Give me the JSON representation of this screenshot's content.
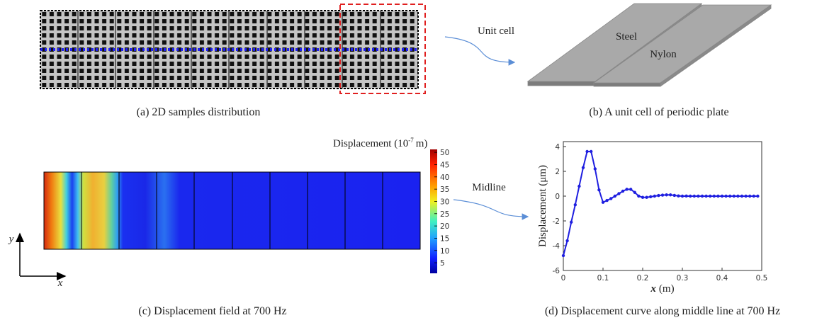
{
  "panel_a": {
    "caption": "(a) 2D samples distribution"
  },
  "panel_b": {
    "caption": "(b) A unit cell of periodic plate",
    "arrow_label": "Unit cell",
    "steel": "Steel",
    "nylon": "Nylon"
  },
  "panel_c": {
    "caption": "(c) Displacement field at 700 Hz",
    "arrow_label": "Midline",
    "y_axis": "y",
    "x_axis": "x",
    "colorbar": {
      "title": "Displacement (10",
      "title_sup": "-7",
      "title_end": "m)",
      "clim": [
        0.7,
        51.2
      ],
      "ticks": [
        5,
        10,
        15,
        20,
        25,
        30,
        35,
        40,
        45,
        50
      ]
    }
  },
  "chart_data": {
    "type": "line",
    "caption": "(d) Displacement curve along middle line at 700 Hz",
    "xlabel_var": "x",
    "xlabel_unit": "(m)",
    "ylabel": "Displacement (μm)",
    "x": [
      0,
      0.01,
      0.02,
      0.03,
      0.04,
      0.05,
      0.06,
      0.07,
      0.08,
      0.09,
      0.1,
      0.11,
      0.12,
      0.13,
      0.14,
      0.15,
      0.16,
      0.17,
      0.18,
      0.19,
      0.2,
      0.21,
      0.22,
      0.23,
      0.24,
      0.25,
      0.26,
      0.27,
      0.28,
      0.29,
      0.3,
      0.31,
      0.32,
      0.33,
      0.34,
      0.35,
      0.36,
      0.37,
      0.38,
      0.39,
      0.4,
      0.41,
      0.42,
      0.43,
      0.44,
      0.45,
      0.46,
      0.47,
      0.48,
      0.49
    ],
    "values": [
      -4.8,
      -3.6,
      -2.1,
      -0.7,
      0.8,
      2.3,
      3.6,
      3.6,
      2.2,
      0.5,
      -0.5,
      -0.35,
      -0.2,
      0,
      0.2,
      0.4,
      0.55,
      0.55,
      0.3,
      0,
      -0.1,
      -0.1,
      -0.05,
      0,
      0.05,
      0.08,
      0.1,
      0.1,
      0.06,
      0.02,
      0,
      0.01,
      0,
      0,
      0,
      0,
      0,
      0,
      0,
      0,
      0,
      0,
      0,
      0,
      0,
      0,
      0,
      0,
      0,
      0
    ],
    "color": "#1f1fe0",
    "xlim": [
      0,
      0.5
    ],
    "ylim": [
      -6,
      4.4
    ],
    "xticks": [
      0,
      0.1,
      0.2,
      0.3,
      0.4,
      0.5
    ],
    "yticks": [
      -6,
      -4,
      -2,
      0,
      2,
      4
    ]
  }
}
